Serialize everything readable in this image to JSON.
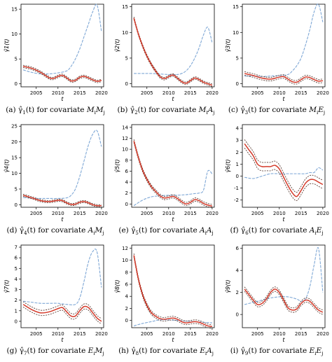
{
  "colors": {
    "est": "#7fa8d6",
    "red": "#d43a2a",
    "dark": "#4a2a20",
    "axis": "#000000"
  },
  "chart_data": [
    {
      "type": "line",
      "xlabel": "t",
      "ylabel": "γ̂1(t)",
      "caption": "(a) γ̂1(t) for covariate MiMj",
      "xlim": [
        2001.5,
        2020.5
      ],
      "ylim": [
        -0.6,
        16
      ],
      "yticks": [
        0,
        5,
        10,
        15
      ],
      "xticks": [
        2005,
        2010,
        2015,
        2020
      ],
      "series": [
        {
          "role": "blue",
          "x": [
            2002,
            2004,
            2006,
            2008,
            2010,
            2012,
            2013,
            2014,
            2015,
            2016,
            2017,
            2018,
            2019,
            2020
          ],
          "y": [
            2.8,
            2.3,
            2.0,
            2.0,
            2.2,
            2.6,
            3.5,
            5.0,
            7.0,
            9.5,
            12.0,
            14.5,
            15.8,
            10.5
          ]
        },
        {
          "role": "red",
          "x": [
            2002,
            2004,
            2006,
            2008,
            2009,
            2010,
            2011,
            2012,
            2013,
            2014,
            2015,
            2016,
            2017,
            2018,
            2019,
            2020
          ],
          "y": [
            3.5,
            3.1,
            2.3,
            1.2,
            1.1,
            1.5,
            1.7,
            1.2,
            0.6,
            0.7,
            1.3,
            1.5,
            1.2,
            0.8,
            0.5,
            0.7
          ]
        }
      ],
      "band": 0.25
    },
    {
      "type": "line",
      "xlabel": "t",
      "ylabel": "γ̂2(t)",
      "caption": "(b) γ̂2(t) for covariate MiAj",
      "xlim": [
        2001.5,
        2020.5
      ],
      "ylim": [
        -0.6,
        15.5
      ],
      "yticks": [
        0,
        5,
        10,
        15
      ],
      "xticks": [
        2005,
        2010,
        2015,
        2020
      ],
      "series": [
        {
          "role": "blue",
          "x": [
            2002,
            2004,
            2006,
            2008,
            2010,
            2012,
            2013,
            2014,
            2015,
            2016,
            2017,
            2018,
            2019,
            2020
          ],
          "y": [
            2.0,
            2.0,
            2.0,
            1.9,
            1.8,
            1.8,
            2.0,
            2.5,
            3.5,
            5.0,
            7.0,
            9.5,
            11.0,
            8.0
          ]
        },
        {
          "role": "red",
          "x": [
            2002,
            2003,
            2004,
            2005,
            2006,
            2007,
            2008,
            2009,
            2010,
            2011,
            2012,
            2013,
            2014,
            2015,
            2016,
            2017,
            2018,
            2019,
            2020
          ],
          "y": [
            12.8,
            9.8,
            7.4,
            5.4,
            3.8,
            2.5,
            1.4,
            1.0,
            1.4,
            1.7,
            1.1,
            0.4,
            0.1,
            0.6,
            1.1,
            0.8,
            0.3,
            0.0,
            -0.3
          ]
        }
      ],
      "band": 0.25
    },
    {
      "type": "line",
      "xlabel": "t",
      "ylabel": "γ̂3(t)",
      "caption": "(c) γ̂3(t) for covariate MiEj",
      "xlim": [
        2001.5,
        2020.5
      ],
      "ylim": [
        -0.6,
        15.5
      ],
      "yticks": [
        0,
        5,
        10,
        15
      ],
      "xticks": [
        2005,
        2010,
        2015,
        2020
      ],
      "series": [
        {
          "role": "blue",
          "x": [
            2002,
            2004,
            2006,
            2008,
            2010,
            2012,
            2013,
            2014,
            2015,
            2016,
            2017,
            2018,
            2019,
            2020
          ],
          "y": [
            1.5,
            1.5,
            1.4,
            1.5,
            1.6,
            1.8,
            2.5,
            3.5,
            5.0,
            7.5,
            10.5,
            14.0,
            15.5,
            12.0
          ]
        },
        {
          "role": "red",
          "x": [
            2002,
            2004,
            2006,
            2008,
            2010,
            2011,
            2012,
            2013,
            2014,
            2015,
            2016,
            2017,
            2018,
            2019,
            2020
          ],
          "y": [
            2.0,
            1.6,
            1.1,
            0.9,
            1.3,
            1.4,
            0.9,
            0.4,
            0.3,
            0.8,
            1.3,
            1.2,
            0.8,
            0.5,
            0.6
          ]
        }
      ],
      "band": 0.35
    },
    {
      "type": "line",
      "xlabel": "t",
      "ylabel": "γ̂4(t)",
      "caption": "(d) γ̂4(t) for covariate AiMj",
      "xlim": [
        2001.5,
        2020.5
      ],
      "ylim": [
        -0.8,
        25.5
      ],
      "yticks": [
        0,
        5,
        10,
        15,
        20,
        25
      ],
      "xticks": [
        2005,
        2010,
        2015,
        2020
      ],
      "series": [
        {
          "role": "blue",
          "x": [
            2002,
            2004,
            2006,
            2008,
            2010,
            2012,
            2013,
            2014,
            2015,
            2016,
            2017,
            2018,
            2019,
            2020
          ],
          "y": [
            2.3,
            2.1,
            2.0,
            2.0,
            2.0,
            2.2,
            3.0,
            5.0,
            9.0,
            14.0,
            19.0,
            22.5,
            23.5,
            18.5
          ]
        },
        {
          "role": "red",
          "x": [
            2002,
            2004,
            2006,
            2008,
            2010,
            2011,
            2012,
            2013,
            2014,
            2015,
            2016,
            2017,
            2018,
            2019,
            2020
          ],
          "y": [
            3.0,
            2.2,
            1.3,
            1.0,
            1.4,
            1.3,
            0.6,
            0.1,
            0.2,
            0.8,
            1.0,
            0.6,
            0.0,
            -0.3,
            -0.3
          ]
        }
      ],
      "band": 0.35
    },
    {
      "type": "line",
      "xlabel": "t",
      "ylabel": "γ̂5(t)",
      "caption": "(e) γ̂5(t) for covariate AiAj",
      "xlim": [
        2001.5,
        2020.5
      ],
      "ylim": [
        -0.6,
        14.5
      ],
      "yticks": [
        0,
        2,
        4,
        6,
        8,
        10,
        12,
        14
      ],
      "xticks": [
        2005,
        2010,
        2015,
        2020
      ],
      "series": [
        {
          "role": "blue",
          "x": [
            2002,
            2004,
            2006,
            2008,
            2010,
            2012,
            2014,
            2015,
            2016,
            2017,
            2018,
            2019,
            2020
          ],
          "y": [
            -0.3,
            0.7,
            1.3,
            1.5,
            1.6,
            1.6,
            1.7,
            1.8,
            1.9,
            2.0,
            2.5,
            6.0,
            5.5
          ]
        },
        {
          "role": "red",
          "x": [
            2002,
            2003,
            2004,
            2005,
            2006,
            2007,
            2008,
            2009,
            2010,
            2011,
            2012,
            2013,
            2014,
            2015,
            2016,
            2017,
            2018,
            2019,
            2020
          ],
          "y": [
            11.5,
            8.6,
            6.2,
            4.5,
            3.2,
            2.3,
            1.5,
            1.1,
            1.2,
            1.4,
            1.0,
            0.4,
            0.0,
            0.3,
            0.8,
            0.6,
            0.1,
            -0.2,
            -0.4
          ]
        }
      ],
      "band": 0.3
    },
    {
      "type": "line",
      "xlabel": "t",
      "ylabel": "γ̂6(t)",
      "caption": "(f) γ̂6(t) for covariate AiEj",
      "xlim": [
        2001.5,
        2020.5
      ],
      "ylim": [
        -2.6,
        4.3
      ],
      "yticks": [
        -2,
        -1,
        0,
        1,
        2,
        3,
        4
      ],
      "xticks": [
        2005,
        2010,
        2015,
        2020
      ],
      "series": [
        {
          "role": "blue",
          "x": [
            2002,
            2004,
            2006,
            2008,
            2010,
            2012,
            2014,
            2016,
            2017,
            2018,
            2019,
            2020
          ],
          "y": [
            -0.1,
            -0.2,
            0.0,
            0.2,
            0.2,
            0.2,
            0.2,
            0.2,
            0.3,
            0.3,
            0.7,
            0.5
          ]
        },
        {
          "role": "red",
          "x": [
            2002,
            2003,
            2004,
            2005,
            2006,
            2007,
            2008,
            2009,
            2010,
            2011,
            2012,
            2013,
            2014,
            2015,
            2016,
            2017,
            2018,
            2019,
            2020
          ],
          "y": [
            2.7,
            2.2,
            1.7,
            1.0,
            0.8,
            0.8,
            0.8,
            0.9,
            0.6,
            -0.1,
            -0.8,
            -1.4,
            -1.7,
            -1.2,
            -0.6,
            -0.3,
            -0.3,
            -0.5,
            -0.7
          ]
        }
      ],
      "band": 0.35
    },
    {
      "type": "line",
      "xlabel": "t",
      "ylabel": "γ̂7(t)",
      "caption": "(g) γ̂7(t) for covariate EiMj",
      "xlim": [
        2001.5,
        2020.5
      ],
      "ylim": [
        -0.6,
        7.2
      ],
      "yticks": [
        0,
        1,
        2,
        3,
        4,
        5,
        6,
        7
      ],
      "xticks": [
        2005,
        2010,
        2015,
        2020
      ],
      "series": [
        {
          "role": "blue",
          "x": [
            2002,
            2004,
            2006,
            2008,
            2010,
            2012,
            2014,
            2015,
            2016,
            2017,
            2018,
            2019,
            2020
          ],
          "y": [
            1.9,
            1.8,
            1.7,
            1.7,
            1.7,
            1.6,
            1.6,
            2.2,
            3.8,
            5.6,
            6.6,
            6.5,
            3.2
          ]
        },
        {
          "role": "red",
          "x": [
            2002,
            2004,
            2006,
            2008,
            2010,
            2011,
            2012,
            2013,
            2014,
            2015,
            2016,
            2017,
            2018,
            2019,
            2020
          ],
          "y": [
            1.6,
            1.1,
            0.8,
            0.9,
            1.2,
            1.3,
            0.9,
            0.5,
            0.5,
            1.0,
            1.4,
            1.3,
            0.8,
            0.3,
            0.0
          ]
        }
      ],
      "band": 0.25
    },
    {
      "type": "line",
      "xlabel": "t",
      "ylabel": "γ̂8(t)",
      "caption": "(h) γ̂8(t) for covariate EiAj",
      "xlim": [
        2001.5,
        2020.5
      ],
      "ylim": [
        -1.2,
        12.5
      ],
      "yticks": [
        0,
        2,
        4,
        6,
        8,
        10,
        12
      ],
      "xticks": [
        2005,
        2010,
        2015,
        2020
      ],
      "series": [
        {
          "role": "blue",
          "x": [
            2002,
            2004,
            2006,
            2008,
            2010,
            2012,
            2014,
            2016,
            2018,
            2020
          ],
          "y": [
            -0.9,
            -0.5,
            -0.2,
            0.1,
            0.1,
            0.0,
            -0.1,
            -0.2,
            -0.3,
            -0.4
          ]
        },
        {
          "role": "red",
          "x": [
            2002,
            2003,
            2004,
            2005,
            2006,
            2007,
            2008,
            2009,
            2010,
            2011,
            2012,
            2013,
            2014,
            2015,
            2016,
            2017,
            2018,
            2019,
            2020
          ],
          "y": [
            10.8,
            7.0,
            4.3,
            2.5,
            1.3,
            0.7,
            0.3,
            0.2,
            0.3,
            0.4,
            0.2,
            -0.2,
            -0.4,
            -0.3,
            -0.2,
            -0.3,
            -0.6,
            -0.9,
            -1.0
          ]
        }
      ],
      "band": 0.3
    },
    {
      "type": "line",
      "xlabel": "t",
      "ylabel": "γ̂9(t)",
      "caption": "(i) γ̂9(t) for covariate EiEj",
      "xlim": [
        2001.5,
        2020.5
      ],
      "ylim": [
        -1.2,
        6.3
      ],
      "yticks": [
        0,
        2,
        4,
        6
      ],
      "xticks": [
        2005,
        2010,
        2015,
        2020
      ],
      "series": [
        {
          "role": "blue",
          "x": [
            2002,
            2004,
            2006,
            2008,
            2010,
            2012,
            2014,
            2015,
            2016,
            2017,
            2018,
            2019,
            2020
          ],
          "y": [
            0.9,
            1.1,
            1.3,
            1.5,
            1.6,
            1.6,
            1.4,
            1.2,
            1.4,
            2.5,
            4.5,
            6.0,
            2.0
          ]
        },
        {
          "role": "red",
          "x": [
            2002,
            2003,
            2004,
            2005,
            2006,
            2007,
            2008,
            2009,
            2010,
            2011,
            2012,
            2013,
            2014,
            2015,
            2016,
            2017,
            2018,
            2019,
            2020
          ],
          "y": [
            2.3,
            1.8,
            1.3,
            0.9,
            1.0,
            1.4,
            2.0,
            2.3,
            2.0,
            1.3,
            0.6,
            0.4,
            0.5,
            1.0,
            1.3,
            1.2,
            0.8,
            0.4,
            0.2
          ]
        }
      ],
      "band": 0.2
    }
  ]
}
